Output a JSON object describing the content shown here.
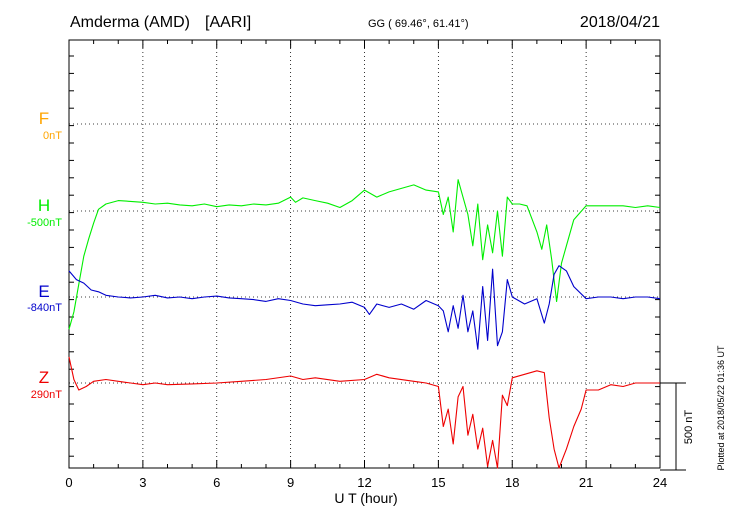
{
  "header": {
    "station": "Amderma (AMD)",
    "network": "[AARI]",
    "coords": "GG ( 69.46°,  61.41°)",
    "date": "2018/04/21"
  },
  "plotted_note": "Plotted at 2018/05/22 01:36 UT",
  "scale_label": "500 nT",
  "colors": {
    "F": "#ffa500",
    "H": "#00ee00",
    "E": "#0000cc",
    "Z": "#ee0000",
    "axis": "#000000"
  },
  "chart_data": {
    "type": "line",
    "xlabel": "U T (hour)",
    "xlim": [
      0,
      24
    ],
    "xticks": [
      "0",
      "3",
      "6",
      "9",
      "12",
      "15",
      "18",
      "21",
      "24"
    ],
    "scale_bar_nT": 500,
    "components": [
      {
        "name": "F",
        "baseline": "0nT",
        "series": []
      },
      {
        "name": "H",
        "baseline": "-500nT",
        "x": [
          0,
          0.2,
          0.4,
          0.6,
          0.8,
          1.0,
          1.2,
          1.5,
          2,
          2.5,
          3,
          3.5,
          4,
          4.5,
          5,
          5.5,
          6,
          6.5,
          7,
          7.5,
          8,
          8.5,
          9,
          9.2,
          9.5,
          10,
          10.5,
          11,
          11.5,
          12,
          12.5,
          13,
          13.5,
          14,
          14.5,
          15,
          15.2,
          15.4,
          15.6,
          15.8,
          16,
          16.2,
          16.4,
          16.6,
          16.8,
          17,
          17.2,
          17.4,
          17.6,
          17.8,
          18,
          18.3,
          18.6,
          19,
          19.2,
          19.4,
          19.6,
          19.8,
          20,
          20.2,
          20.5,
          21,
          21.5,
          22,
          22.5,
          23,
          23.5,
          24
        ],
        "y": [
          -680,
          -580,
          -420,
          -260,
          -160,
          -70,
          10,
          40,
          60,
          55,
          50,
          40,
          45,
          35,
          30,
          40,
          25,
          35,
          30,
          40,
          35,
          45,
          80,
          50,
          75,
          60,
          45,
          20,
          60,
          120,
          80,
          110,
          130,
          150,
          120,
          110,
          -20,
          80,
          -120,
          180,
          80,
          -20,
          -200,
          40,
          -280,
          -80,
          -240,
          0,
          -260,
          80,
          40,
          40,
          30,
          -120,
          -220,
          -80,
          -280,
          -520,
          -300,
          -200,
          -50,
          30,
          30,
          30,
          30,
          20,
          30,
          20
        ]
      },
      {
        "name": "E",
        "baseline": "-840nT",
        "x": [
          0,
          0.3,
          0.6,
          0.9,
          1.2,
          1.5,
          2,
          2.5,
          3,
          3.5,
          4,
          4.5,
          5,
          5.5,
          6,
          6.5,
          7,
          7.5,
          8,
          8.5,
          9,
          9.5,
          10,
          10.5,
          11,
          11.5,
          12,
          12.2,
          12.5,
          13,
          13.5,
          14,
          14.5,
          15,
          15.2,
          15.4,
          15.6,
          15.8,
          16,
          16.2,
          16.4,
          16.6,
          16.8,
          17,
          17.2,
          17.4,
          17.6,
          17.8,
          18,
          18.5,
          19,
          19.3,
          19.5,
          19.7,
          19.9,
          20.2,
          20.5,
          21,
          21.5,
          22,
          22.5,
          23,
          23.5,
          24
        ],
        "y": [
          150,
          100,
          80,
          40,
          30,
          10,
          0,
          -5,
          0,
          10,
          -5,
          0,
          -10,
          0,
          5,
          -5,
          -10,
          -15,
          -25,
          -10,
          -20,
          -40,
          -50,
          -45,
          -40,
          -30,
          -60,
          -100,
          -40,
          -60,
          -40,
          -70,
          -20,
          -50,
          -80,
          -200,
          -50,
          -180,
          10,
          -200,
          -80,
          -300,
          60,
          -250,
          160,
          -280,
          -200,
          100,
          0,
          -40,
          -10,
          -150,
          -40,
          130,
          180,
          150,
          60,
          -10,
          0,
          0,
          -10,
          0,
          0,
          -10
        ]
      },
      {
        "name": "Z",
        "baseline": "290nT",
        "x": [
          0,
          0.2,
          0.4,
          0.7,
          1.0,
          1.5,
          2,
          2.5,
          3,
          3.5,
          4,
          5,
          6,
          7,
          8,
          9,
          9.5,
          10,
          11,
          12,
          12.5,
          13,
          14,
          14.5,
          15,
          15.2,
          15.4,
          15.6,
          15.8,
          16,
          16.2,
          16.4,
          16.6,
          16.8,
          17,
          17.2,
          17.4,
          17.6,
          17.8,
          18,
          18.5,
          19,
          19.3,
          19.5,
          19.7,
          19.9,
          20.2,
          20.5,
          20.8,
          21,
          21.5,
          22,
          22.5,
          23,
          24
        ],
        "y": [
          150,
          20,
          -40,
          -20,
          10,
          20,
          10,
          0,
          -10,
          0,
          -10,
          -5,
          0,
          10,
          20,
          40,
          20,
          30,
          10,
          20,
          50,
          30,
          10,
          0,
          -20,
          -250,
          -150,
          -350,
          -80,
          -20,
          -300,
          -180,
          -380,
          -260,
          -480,
          -330,
          -600,
          -70,
          -130,
          30,
          50,
          70,
          60,
          -200,
          -380,
          -500,
          -380,
          -250,
          -150,
          -40,
          -40,
          -10,
          -20,
          0,
          0
        ]
      }
    ]
  }
}
